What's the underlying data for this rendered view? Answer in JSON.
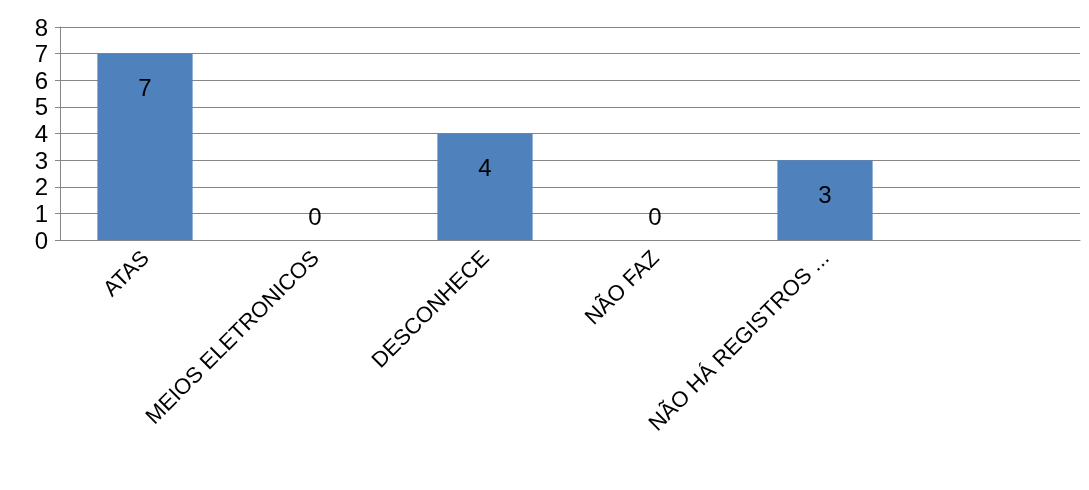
{
  "chart_data": {
    "type": "bar",
    "categories": [
      "ATAS",
      "MEIOS ELETRONICOS",
      "DESCONHECE",
      "NÃO FAZ",
      "NÃO HÁ REGISTROS ...",
      null
    ],
    "values": [
      7,
      0,
      4,
      0,
      3,
      null
    ],
    "color": "#4f81bd",
    "ylim": [
      0,
      8
    ],
    "yticks": [
      0,
      1,
      2,
      3,
      4,
      5,
      6,
      7,
      8
    ],
    "grid": "y",
    "data_labels": true
  }
}
